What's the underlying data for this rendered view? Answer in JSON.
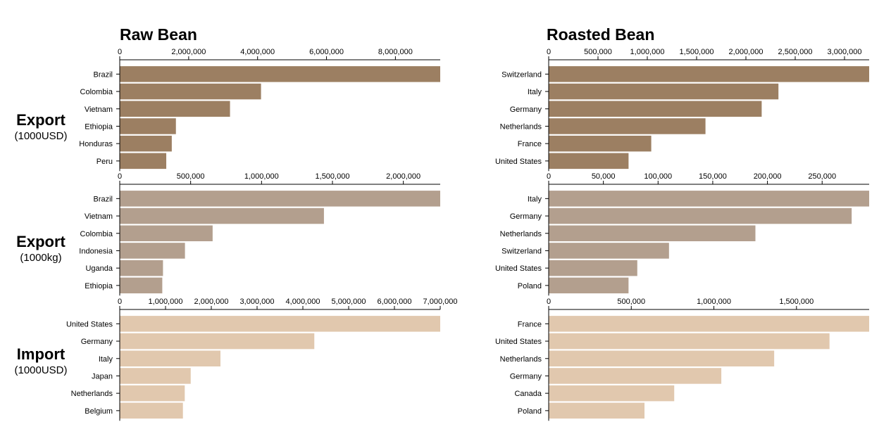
{
  "columns": {
    "raw_title": "Raw Bean",
    "roasted_title": "Roasted Bean"
  },
  "rows": [
    {
      "main": "Export",
      "sub": "(1000USD)"
    },
    {
      "main": "Export",
      "sub": "(1000kg)"
    },
    {
      "main": "Import",
      "sub": "(1000USD)"
    }
  ],
  "colors": {
    "export_usd": "#9c7f62",
    "export_kg": "#b39f8e",
    "import_usd": "#e1c8ae",
    "axis": "#000000"
  },
  "chart_data": [
    {
      "type": "bar",
      "orientation": "horizontal",
      "title": "Raw Bean",
      "row": "Export (1000USD)",
      "categories": [
        "Brazil",
        "Colombia",
        "Vietnam",
        "Ethiopia",
        "Honduras",
        "Peru"
      ],
      "values": [
        9300000,
        4100000,
        3200000,
        1630000,
        1510000,
        1350000
      ],
      "xlim": [
        0,
        9300000
      ],
      "ticks": [
        0,
        2000000,
        4000000,
        6000000,
        8000000
      ],
      "tick_labels": [
        "0",
        "2,000,000",
        "4,000,000",
        "6,000,000",
        "8,000,000"
      ],
      "color": "#9c7f62"
    },
    {
      "type": "bar",
      "orientation": "horizontal",
      "title": "Roasted Bean",
      "row": "Export (1000USD)",
      "categories": [
        "Switzerland",
        "Italy",
        "Germany",
        "Netherlands",
        "France",
        "United States"
      ],
      "values": [
        3250000,
        2330000,
        2160000,
        1590000,
        1040000,
        810000
      ],
      "xlim": [
        0,
        3250000
      ],
      "ticks": [
        0,
        500000,
        1000000,
        1500000,
        2000000,
        2500000,
        3000000
      ],
      "tick_labels": [
        "0",
        "500,000",
        "1,000,000",
        "1,500,000",
        "2,000,000",
        "2,500,000",
        "3,000,000"
      ],
      "color": "#9c7f62"
    },
    {
      "type": "bar",
      "orientation": "horizontal",
      "title": "Raw Bean",
      "row": "Export (1000kg)",
      "categories": [
        "Brazil",
        "Vietnam",
        "Colombia",
        "Indonesia",
        "Uganda",
        "Ethiopia"
      ],
      "values": [
        2260000,
        1440000,
        655000,
        460000,
        305000,
        300000
      ],
      "xlim": [
        0,
        2260000
      ],
      "ticks": [
        0,
        500000,
        1000000,
        1500000,
        2000000
      ],
      "tick_labels": [
        "0",
        "500,000",
        "1,000,000",
        "1,500,000",
        "2,000,000"
      ],
      "color": "#b39f8e"
    },
    {
      "type": "bar",
      "orientation": "horizontal",
      "title": "Roasted Bean",
      "row": "Export (1000kg)",
      "categories": [
        "Italy",
        "Germany",
        "Netherlands",
        "Switzerland",
        "United States",
        "Poland"
      ],
      "values": [
        293000,
        277000,
        189000,
        110000,
        81000,
        73000
      ],
      "xlim": [
        0,
        293000
      ],
      "ticks": [
        0,
        50000,
        100000,
        150000,
        200000,
        250000
      ],
      "tick_labels": [
        "0",
        "50,000",
        "100,000",
        "150,000",
        "200,000",
        "250,000"
      ],
      "color": "#b39f8e"
    },
    {
      "type": "bar",
      "orientation": "horizontal",
      "title": "Raw Bean",
      "row": "Import (1000USD)",
      "categories": [
        "United States",
        "Germany",
        "Italy",
        "Japan",
        "Netherlands",
        "Belgium"
      ],
      "values": [
        7000000,
        4250000,
        2200000,
        1550000,
        1420000,
        1380000
      ],
      "xlim": [
        0,
        7000000
      ],
      "ticks": [
        0,
        1000000,
        2000000,
        3000000,
        4000000,
        5000000,
        6000000,
        7000000
      ],
      "tick_labels": [
        "0",
        "1,000,000",
        "2,000,000",
        "3,000,000",
        "4,000,000",
        "5,000,000",
        "6,000,000",
        "7,000,000"
      ],
      "color": "#e1c8ae"
    },
    {
      "type": "bar",
      "orientation": "horizontal",
      "title": "Roasted Bean",
      "row": "Import (1000USD)",
      "categories": [
        "France",
        "United States",
        "Netherlands",
        "Germany",
        "Canada",
        "Poland"
      ],
      "values": [
        1940000,
        1700000,
        1365000,
        1045000,
        760000,
        580000
      ],
      "xlim": [
        0,
        1940000
      ],
      "ticks": [
        0,
        500000,
        1000000,
        1500000
      ],
      "tick_labels": [
        "0",
        "500,000",
        "1,000,000",
        "1,500,000"
      ],
      "color": "#e1c8ae"
    }
  ]
}
